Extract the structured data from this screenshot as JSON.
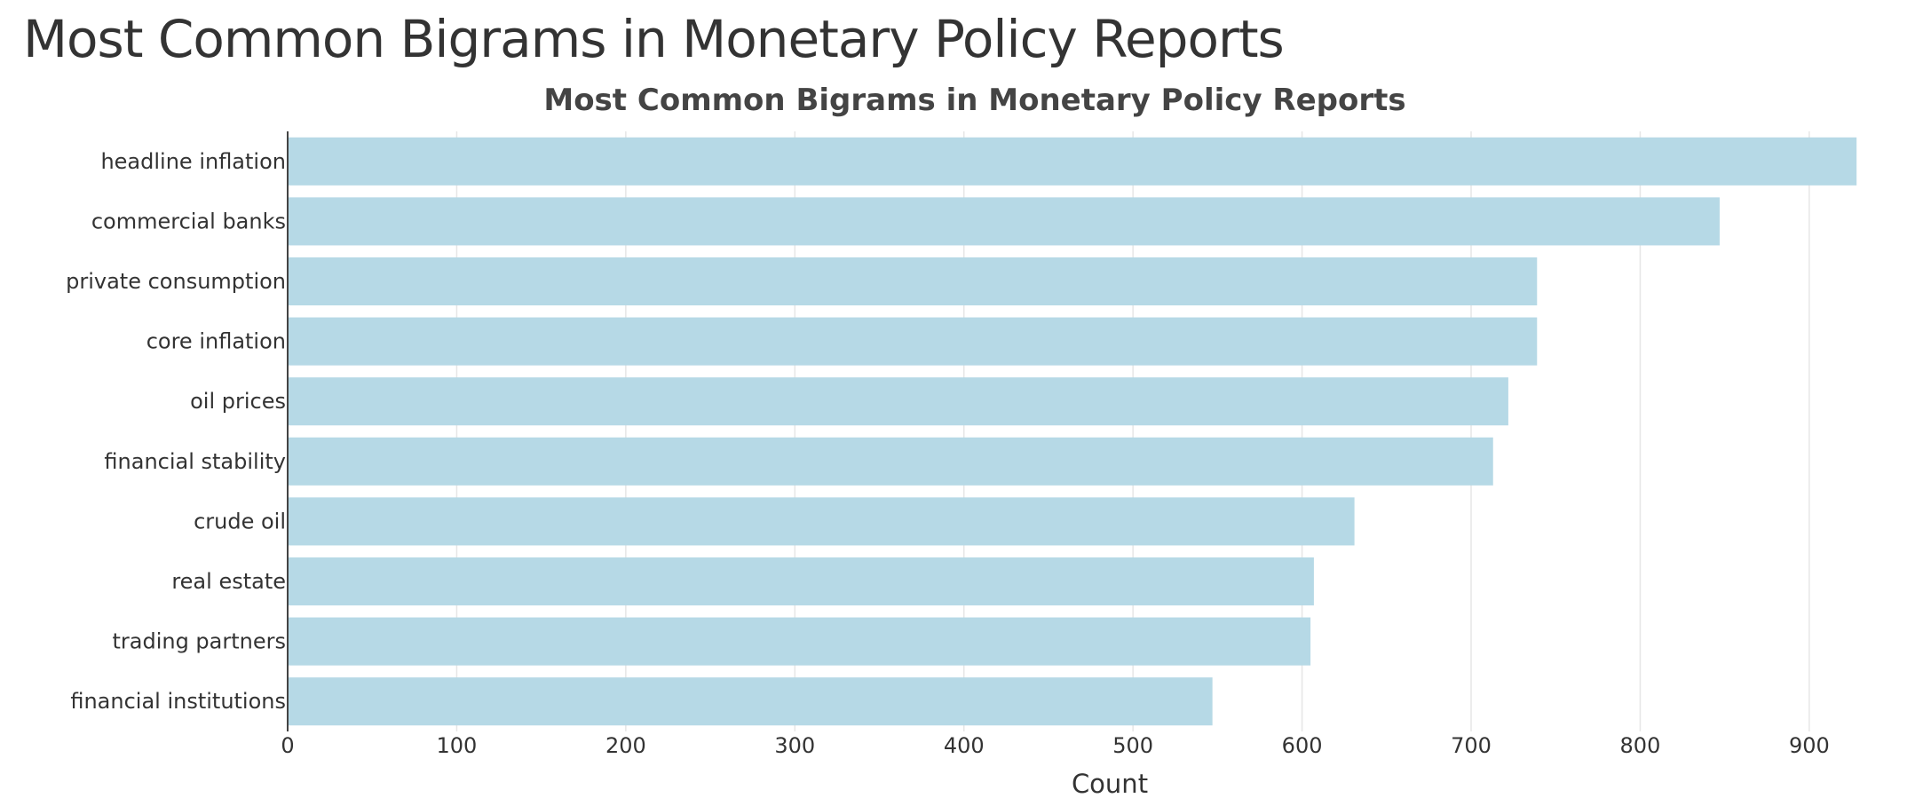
{
  "page": {
    "heading": "Most Common Bigrams in Monetary Policy Reports"
  },
  "chart_data": {
    "type": "bar",
    "orientation": "horizontal",
    "title": "Most Common Bigrams in Monetary Policy Reports",
    "xlabel": "Count",
    "ylabel": "",
    "categories": [
      "headline inflation",
      "commercial banks",
      "private consumption",
      "core inflation",
      "oil prices",
      "financial stability",
      "crude oil",
      "real estate",
      "trading partners",
      "financial institutions"
    ],
    "values": [
      928,
      847,
      739,
      739,
      722,
      713,
      631,
      607,
      605,
      547
    ],
    "xlim": [
      0,
      950
    ],
    "xticks": [
      0,
      100,
      200,
      300,
      400,
      500,
      600,
      700,
      800,
      900
    ],
    "grid": true,
    "legend": "none",
    "colors": {
      "bar": "#b6d9e6",
      "grid": "#e6e6e6",
      "axis": "#444444"
    }
  }
}
